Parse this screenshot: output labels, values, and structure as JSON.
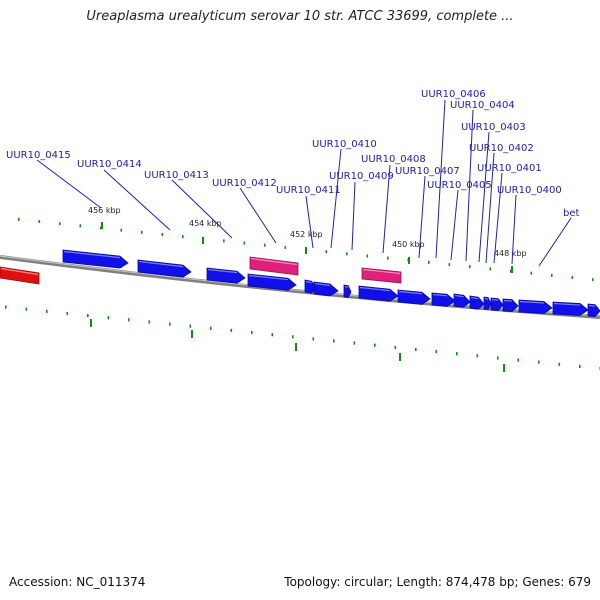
{
  "title": "Ureaplasma urealyticum serovar 10 str. ATCC 33699, complete ...",
  "footer": {
    "accession": "Accession: NC_011374",
    "stats": "Topology: circular; Length: 874,478 bp; Genes: 679"
  },
  "colors": {
    "gene": "#1010e8",
    "rna": "#e0207a",
    "other_feature": "#e01010",
    "label": "#2020b0",
    "tick": "#109010",
    "backbone": "#808080"
  },
  "ticks": [
    "456 kbp",
    "454 kbp",
    "452 kbp",
    "450 kbp",
    "448 kbp"
  ],
  "genes": [
    "UUR10_0415",
    "UUR10_0414",
    "UUR10_0413",
    "UUR10_0412",
    "UUR10_0411",
    "UUR10_0410",
    "UUR10_0409",
    "UUR10_0408",
    "UUR10_0407",
    "UUR10_0406",
    "UUR10_0405",
    "UUR10_0404",
    "UUR10_0403",
    "UUR10_0402",
    "UUR10_0401",
    "UUR10_0400",
    "bet"
  ]
}
